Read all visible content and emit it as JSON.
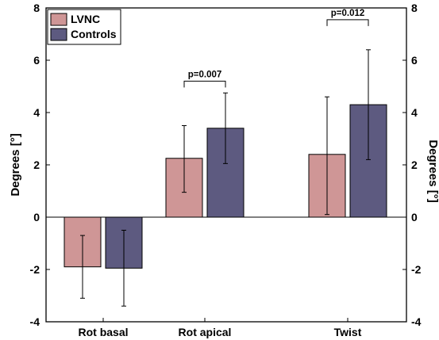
{
  "chart_data": {
    "type": "bar",
    "categories": [
      "Rot basal",
      "Rot apical",
      "Twist"
    ],
    "series": [
      {
        "name": "LVNC",
        "values": [
          -1.9,
          2.25,
          2.4
        ],
        "err_low": [
          -3.1,
          0.95,
          0.1
        ],
        "err_high": [
          -0.7,
          3.5,
          4.6
        ],
        "color": "#cf9696"
      },
      {
        "name": "Controls",
        "values": [
          -1.95,
          3.4,
          4.3
        ],
        "err_low": [
          -3.4,
          2.05,
          2.2
        ],
        "err_high": [
          -0.5,
          4.75,
          6.4
        ],
        "color": "#5d5a80"
      }
    ],
    "ylim": [
      -4,
      8
    ],
    "yticks": [
      -4,
      -2,
      0,
      2,
      4,
      6,
      8
    ],
    "ytick_labels": [
      "-4",
      "-2",
      "0",
      "2",
      "4",
      "6",
      "8"
    ],
    "ylabel": "Degrees [°]",
    "ylabel_right": "Degrees [°]",
    "grid": false,
    "legend_position": "top-left",
    "annotations": [
      {
        "text": "p=0.007",
        "category_index": 1,
        "bracket_y": 5.2
      },
      {
        "text": "p=0.012",
        "category_index": 2,
        "bracket_y": 7.55
      }
    ],
    "zero_line": true
  }
}
